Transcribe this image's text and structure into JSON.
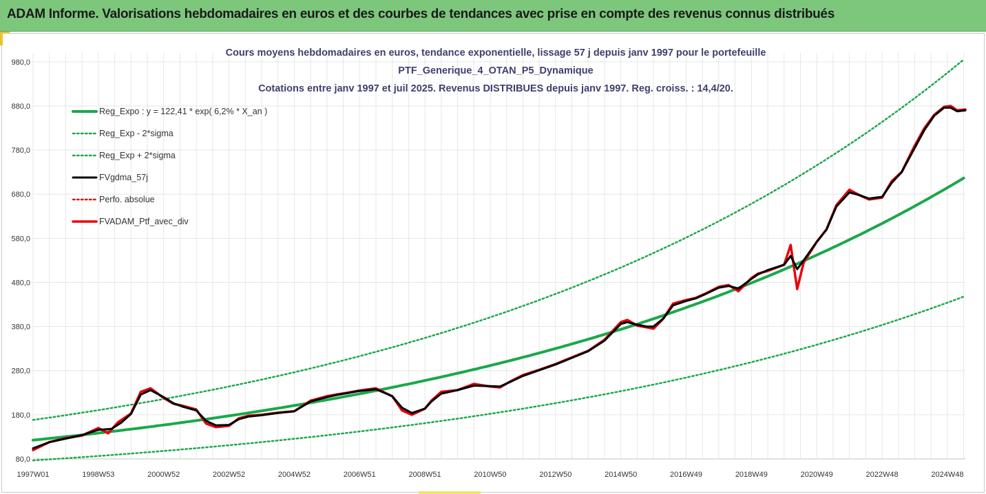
{
  "header": {
    "title": "ADAM Informe. Valorisations hebdomadaires en euros et des courbes de tendances avec prise en compte des revenus connus distribués",
    "background": "#7dc77d"
  },
  "chart_data": {
    "type": "line",
    "title": [
      "Cours moyens hebdomadaires  en euros, tendance exponentielle, lissage 57 j depuis janv 1997 pour le portefeuille",
      "PTF_Generique_4_OTAN_P5_Dynamique",
      "Cotations entre janv 1997 et juil 2025. Revenus DISTRIBUES depuis janv 1997. Reg. croiss. : 14,4/20."
    ],
    "xlabel": "",
    "ylabel": "",
    "ylim": [
      80,
      1000
    ],
    "xlim": [
      1997.0,
      2025.55
    ],
    "grid": true,
    "legend_position": "top-left",
    "y_ticks": [
      "80,0",
      "180,0",
      "280,0",
      "380,0",
      "480,0",
      "580,0",
      "680,0",
      "780,0",
      "880,0",
      "980,0"
    ],
    "x_ticks": [
      {
        "label": "1997W01",
        "x": 1997.0
      },
      {
        "label": "1998W53",
        "x": 1999.0
      },
      {
        "label": "2000W52",
        "x": 2001.0
      },
      {
        "label": "2002W52",
        "x": 2003.0
      },
      {
        "label": "2004W52",
        "x": 2005.0
      },
      {
        "label": "2006W51",
        "x": 2007.0
      },
      {
        "label": "2008W51",
        "x": 2009.0
      },
      {
        "label": "2010W50",
        "x": 2011.0
      },
      {
        "label": "2012W50",
        "x": 2013.0
      },
      {
        "label": "2014W50",
        "x": 2015.0
      },
      {
        "label": "2016W49",
        "x": 2017.0
      },
      {
        "label": "2018W49",
        "x": 2019.0
      },
      {
        "label": "2020W49",
        "x": 2021.0
      },
      {
        "label": "2022W48",
        "x": 2023.0
      },
      {
        "label": "2024W48",
        "x": 2025.0
      }
    ],
    "regression": {
      "a": 122.41,
      "rate": 0.062,
      "sigma_factor": 0.375
    },
    "series": [
      {
        "name": "Reg_Expo : y = 122,41 * exp( 6,2% *  X_an )",
        "color": "#1aa84a",
        "style": "solid",
        "width": 4
      },
      {
        "name": "Reg_Exp - 2*sigma",
        "color": "#1aa84a",
        "style": "dotted",
        "width": 2.5
      },
      {
        "name": "Reg_Exp + 2*sigma",
        "color": "#1aa84a",
        "style": "dotted",
        "width": 2.5
      },
      {
        "name": "FVgdma_57j",
        "color": "#000000",
        "style": "solid",
        "width": 3
      },
      {
        "name": "Perfo. absolue",
        "color": "#e01010",
        "style": "dotted",
        "width": 2.5
      },
      {
        "name": "FVADAM_Ptf_avec_div",
        "color": "#e8000b",
        "style": "solid",
        "width": 3.5,
        "x": [
          1997.0,
          1997.5,
          1998.0,
          1998.5,
          1999.0,
          1999.3,
          1999.6,
          2000.0,
          2000.3,
          2000.6,
          2001.0,
          2001.3,
          2001.6,
          2002.0,
          2002.3,
          2002.6,
          2003.0,
          2003.3,
          2003.6,
          2004.0,
          2004.5,
          2005.0,
          2005.5,
          2006.0,
          2006.3,
          2006.7,
          2007.0,
          2007.5,
          2008.0,
          2008.3,
          2008.6,
          2009.0,
          2009.2,
          2009.5,
          2010.0,
          2010.5,
          2011.0,
          2011.3,
          2011.6,
          2012.0,
          2012.5,
          2013.0,
          2013.5,
          2014.0,
          2014.5,
          2015.0,
          2015.2,
          2015.5,
          2015.8,
          2016.0,
          2016.3,
          2016.6,
          2017.0,
          2017.3,
          2017.6,
          2018.0,
          2018.3,
          2018.6,
          2019.0,
          2019.2,
          2019.5,
          2020.0,
          2020.2,
          2020.4,
          2020.6,
          2021.0,
          2021.3,
          2021.6,
          2022.0,
          2022.3,
          2022.6,
          2023.0,
          2023.3,
          2023.6,
          2024.0,
          2024.3,
          2024.6,
          2024.9,
          2025.1,
          2025.3,
          2025.55
        ],
        "values": [
          100,
          118,
          127,
          133,
          150,
          138,
          163,
          183,
          232,
          240,
          218,
          205,
          200,
          192,
          160,
          152,
          155,
          172,
          178,
          180,
          185,
          188,
          212,
          222,
          226,
          231,
          235,
          240,
          222,
          190,
          180,
          194,
          212,
          232,
          236,
          250,
          244,
          242,
          255,
          270,
          282,
          295,
          310,
          325,
          350,
          390,
          395,
          382,
          378,
          375,
          398,
          432,
          440,
          445,
          455,
          470,
          474,
          460,
          490,
          500,
          506,
          520,
          565,
          465,
          525,
          572,
          600,
          655,
          690,
          678,
          668,
          672,
          710,
          730,
          790,
          830,
          860,
          878,
          880,
          870,
          872
        ]
      }
    ],
    "smoothed": {
      "x": [
        1997.0,
        1997.5,
        1998.0,
        1998.5,
        1999.0,
        1999.4,
        1999.7,
        2000.0,
        2000.3,
        2000.6,
        2001.0,
        2001.3,
        2001.6,
        2002.0,
        2002.3,
        2002.6,
        2003.0,
        2003.3,
        2003.6,
        2004.0,
        2004.5,
        2005.0,
        2005.5,
        2006.0,
        2006.3,
        2006.7,
        2007.0,
        2007.5,
        2008.0,
        2008.3,
        2008.6,
        2009.0,
        2009.2,
        2009.5,
        2010.0,
        2010.5,
        2011.0,
        2011.3,
        2011.6,
        2012.0,
        2012.5,
        2013.0,
        2013.5,
        2014.0,
        2014.5,
        2015.0,
        2015.2,
        2015.5,
        2015.8,
        2016.0,
        2016.3,
        2016.6,
        2017.0,
        2017.3,
        2017.6,
        2018.0,
        2018.3,
        2018.6,
        2019.0,
        2019.2,
        2019.5,
        2020.0,
        2020.2,
        2020.4,
        2020.6,
        2021.0,
        2021.3,
        2021.6,
        2022.0,
        2022.3,
        2022.6,
        2023.0,
        2023.3,
        2023.6,
        2024.0,
        2024.3,
        2024.6,
        2024.9,
        2025.1,
        2025.3,
        2025.55
      ],
      "values": [
        104,
        118,
        126,
        134,
        146,
        148,
        162,
        182,
        226,
        236,
        220,
        206,
        198,
        190,
        166,
        156,
        157,
        170,
        176,
        179,
        184,
        188,
        210,
        220,
        225,
        230,
        234,
        238,
        222,
        196,
        184,
        194,
        210,
        228,
        236,
        246,
        245,
        244,
        254,
        268,
        281,
        294,
        309,
        324,
        348,
        386,
        390,
        384,
        380,
        380,
        398,
        428,
        438,
        444,
        454,
        468,
        472,
        466,
        488,
        498,
        508,
        520,
        540,
        510,
        530,
        572,
        600,
        652,
        684,
        678,
        670,
        674,
        706,
        730,
        785,
        826,
        858,
        876,
        876,
        868,
        870
      ]
    }
  }
}
